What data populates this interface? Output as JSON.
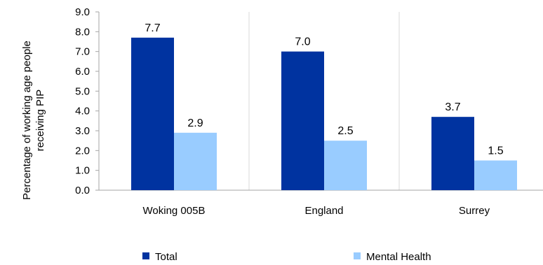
{
  "chart_data": {
    "type": "bar",
    "categories": [
      "Woking 005B",
      "England",
      "Surrey"
    ],
    "series": [
      {
        "name": "Total",
        "values": [
          7.7,
          7.0,
          3.7
        ],
        "labels": [
          "7.7",
          "7.0",
          "3.7"
        ],
        "color": "#0033a0"
      },
      {
        "name": "Mental Health",
        "values": [
          2.9,
          2.5,
          1.5
        ],
        "labels": [
          "2.9",
          "2.5",
          "1.5"
        ],
        "color": "#99ccff"
      }
    ],
    "ylabel_lines": [
      "Percentage of working age people",
      "receiving PIP"
    ],
    "ylim": [
      0,
      9
    ],
    "yticks": [
      "0.0",
      "1.0",
      "2.0",
      "3.0",
      "4.0",
      "5.0",
      "6.0",
      "7.0",
      "8.0",
      "9.0"
    ],
    "grid": "vertical-category-separators",
    "legend_position": "bottom"
  }
}
